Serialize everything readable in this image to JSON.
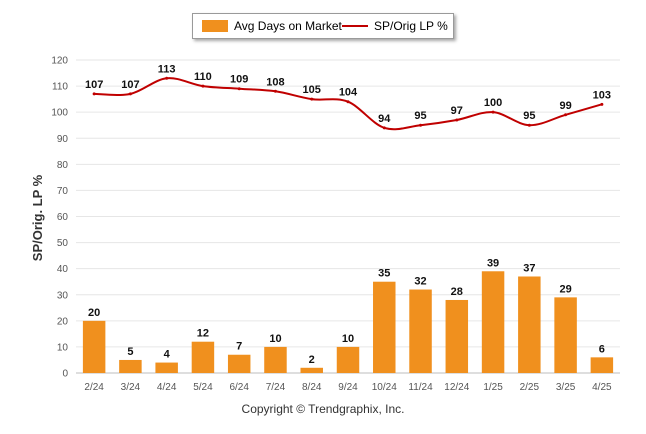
{
  "chart_data": {
    "type": "bar",
    "categories": [
      "2/24",
      "3/24",
      "4/24",
      "5/24",
      "6/24",
      "7/24",
      "8/24",
      "9/24",
      "10/24",
      "11/24",
      "12/24",
      "1/25",
      "2/25",
      "3/25",
      "4/25"
    ],
    "series": [
      {
        "name": "Avg Days on Market",
        "type": "bar",
        "color": "#f0901e",
        "values": [
          20,
          5,
          4,
          12,
          7,
          10,
          2,
          10,
          35,
          32,
          28,
          39,
          37,
          29,
          6
        ]
      },
      {
        "name": "SP/Orig LP %",
        "type": "line",
        "color": "#c00000",
        "values": [
          107,
          107,
          113,
          110,
          109,
          108,
          105,
          104,
          94,
          95,
          97,
          100,
          95,
          99,
          103
        ]
      }
    ],
    "ylabel": "SP/Orig. LP %",
    "ylim": [
      0,
      120
    ],
    "yticks": [
      0,
      10,
      20,
      30,
      40,
      50,
      60,
      70,
      80,
      90,
      100,
      110,
      120
    ],
    "grid": true,
    "legend": "top-center"
  },
  "footer": {
    "copyright": "Copyright © Trendgraphix, Inc."
  }
}
